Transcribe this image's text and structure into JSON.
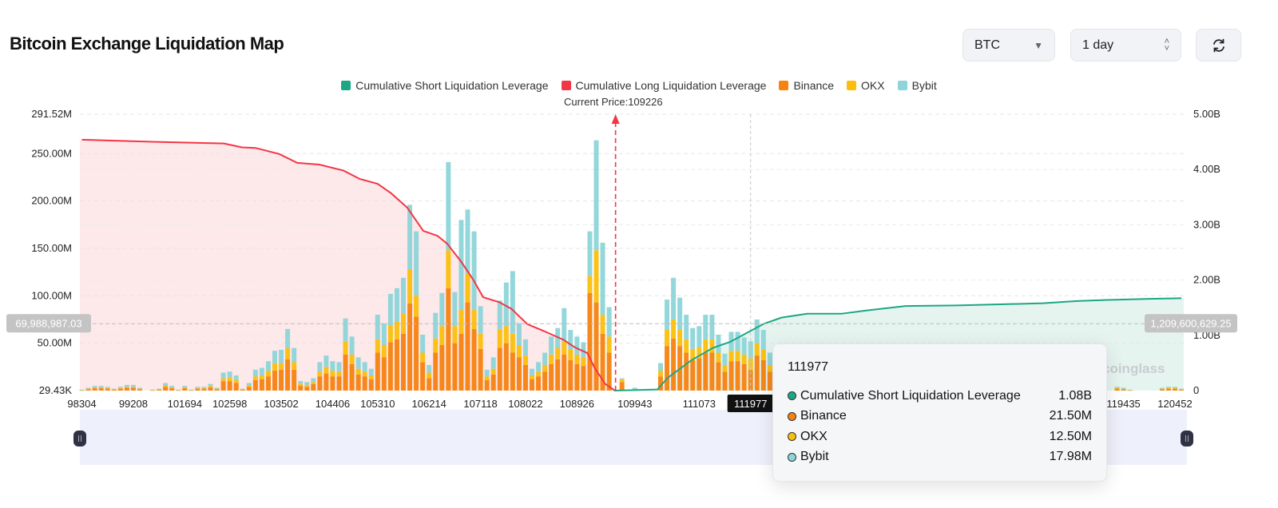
{
  "header": {
    "title": "Bitcoin Exchange Liquidation Map",
    "symbol_select": "BTC",
    "period_select": "1 day",
    "refresh_icon": "refresh-icon"
  },
  "legend": [
    {
      "label": "Cumulative Short Liquidation Leverage",
      "color": "#1ba784"
    },
    {
      "label": "Cumulative Long Liquidation Leverage",
      "color": "#f23645"
    },
    {
      "label": "Binance",
      "color": "#f7820f"
    },
    {
      "label": "OKX",
      "color": "#fbbf0b"
    },
    {
      "label": "Bybit",
      "color": "#8dd5d9"
    }
  ],
  "current_price_label": "Current Price:109226",
  "watermark": "coinglass",
  "crosshair": {
    "left_value": "69,988,987.03",
    "right_value": "1,209,600,629.25",
    "x_label": "111977"
  },
  "tooltip": {
    "title": "111977",
    "rows": [
      {
        "label": "Cumulative Short Liquidation Leverage",
        "value": "1.08B",
        "color": "#1ba784"
      },
      {
        "label": "Binance",
        "value": "21.50M",
        "color": "#f7820f"
      },
      {
        "label": "OKX",
        "value": "12.50M",
        "color": "#fbbf0b"
      },
      {
        "label": "Bybit",
        "value": "17.98M",
        "color": "#8dd5d9"
      }
    ]
  },
  "chart_data": {
    "type": "bar",
    "stacked": true,
    "grid": true,
    "legend_position": "top",
    "y_left": {
      "ticks": [
        "291.52M",
        "250.00M",
        "200.00M",
        "150.00M",
        "100.00M",
        "50.00M",
        "29.43K"
      ],
      "tick_values_M": [
        291.52,
        250,
        200,
        150,
        100,
        50,
        0
      ],
      "range_M": [
        0,
        291.52
      ]
    },
    "y_right": {
      "ticks": [
        "5.00B",
        "4.00B",
        "3.00B",
        "2.00B",
        "1.00B",
        "0"
      ],
      "tick_values_B": [
        5,
        4,
        3,
        2,
        1,
        0
      ],
      "range_B": [
        0,
        5
      ]
    },
    "x_ticks": [
      {
        "label": "98304",
        "bar": 0
      },
      {
        "label": "99208",
        "bar": 8
      },
      {
        "label": "101694",
        "bar": 16
      },
      {
        "label": "102598",
        "bar": 23
      },
      {
        "label": "103502",
        "bar": 31
      },
      {
        "label": "104406",
        "bar": 39
      },
      {
        "label": "105310",
        "bar": 46
      },
      {
        "label": "106214",
        "bar": 54
      },
      {
        "label": "107118",
        "bar": 62
      },
      {
        "label": "108022",
        "bar": 69
      },
      {
        "label": "108926",
        "bar": 77
      },
      {
        "label": "109943",
        "bar": 86
      },
      {
        "label": "111073",
        "bar": 96
      },
      {
        "label": "111977",
        "bar": 104
      },
      {
        "label": "119435",
        "bar": 162
      },
      {
        "label": "120452",
        "bar": 170
      }
    ],
    "current_price": 109226,
    "current_price_bar": 83,
    "series_names": [
      "Binance",
      "OKX",
      "Bybit"
    ],
    "bars_M": [
      [
        0.5,
        0.2,
        0.3
      ],
      [
        1.5,
        0.5,
        1
      ],
      [
        2.5,
        1,
        1.5
      ],
      [
        2.5,
        1,
        1.5
      ],
      [
        2,
        0.7,
        1.3
      ],
      [
        1,
        0.4,
        0.6
      ],
      [
        2,
        0.7,
        1.3
      ],
      [
        3,
        1,
        2
      ],
      [
        3,
        1,
        2
      ],
      [
        1.5,
        0.5,
        1
      ],
      [
        0,
        0,
        0
      ],
      [
        0.5,
        0.2,
        0.3
      ],
      [
        1,
        0.4,
        0.6
      ],
      [
        4,
        1.5,
        2.5
      ],
      [
        2.5,
        1,
        1.5
      ],
      [
        0.5,
        0.2,
        0.3
      ],
      [
        2.5,
        1,
        1.5
      ],
      [
        0.5,
        0.2,
        0.3
      ],
      [
        2,
        0.7,
        1.3
      ],
      [
        2,
        0.7,
        1.3
      ],
      [
        3.5,
        1.2,
        2.3
      ],
      [
        1.5,
        0.5,
        1
      ],
      [
        10,
        3,
        6
      ],
      [
        10,
        4,
        6
      ],
      [
        8,
        3,
        5
      ],
      [
        1,
        0.4,
        0.6
      ],
      [
        4,
        1.5,
        2.5
      ],
      [
        11,
        4,
        7
      ],
      [
        12,
        4,
        8
      ],
      [
        15,
        6,
        10
      ],
      [
        21,
        8,
        13
      ],
      [
        22,
        7,
        14
      ],
      [
        33,
        12,
        20
      ],
      [
        22,
        8,
        15
      ],
      [
        5,
        2,
        3
      ],
      [
        4,
        2,
        3
      ],
      [
        7,
        2,
        4
      ],
      [
        15,
        5,
        10
      ],
      [
        18,
        7,
        12
      ],
      [
        15,
        6,
        10
      ],
      [
        15,
        5,
        10
      ],
      [
        38,
        14,
        24
      ],
      [
        28,
        10,
        19
      ],
      [
        17,
        6,
        12
      ],
      [
        15,
        5,
        10
      ],
      [
        12,
        4,
        7
      ],
      [
        40,
        14,
        26
      ],
      [
        35,
        13,
        23
      ],
      [
        51,
        18,
        33
      ],
      [
        54,
        19,
        35
      ],
      [
        60,
        21,
        38
      ],
      [
        92,
        36,
        68
      ],
      [
        78,
        22,
        68
      ],
      [
        30,
        10,
        19
      ],
      [
        13,
        6,
        8
      ],
      [
        40,
        15,
        27
      ],
      [
        48,
        20,
        35
      ],
      [
        108,
        40,
        93
      ],
      [
        50,
        18,
        36
      ],
      [
        60,
        25,
        95
      ],
      [
        93,
        30,
        68
      ],
      [
        65,
        20,
        83
      ],
      [
        44,
        16,
        29
      ],
      [
        11,
        4,
        7
      ],
      [
        17,
        6,
        12
      ],
      [
        45,
        20,
        30
      ],
      [
        50,
        18,
        46
      ],
      [
        40,
        20,
        66
      ],
      [
        35,
        13,
        23
      ],
      [
        27,
        10,
        17
      ],
      [
        12,
        4,
        7
      ],
      [
        15,
        5,
        10
      ],
      [
        20,
        7,
        13
      ],
      [
        28,
        10,
        19
      ],
      [
        33,
        12,
        21
      ],
      [
        38,
        14,
        35
      ],
      [
        32,
        11,
        21
      ],
      [
        28,
        10,
        19
      ],
      [
        26,
        9,
        16
      ],
      [
        103,
        18,
        47
      ],
      [
        93,
        55,
        116
      ],
      [
        60,
        20,
        76
      ],
      [
        40,
        17,
        31
      ],
      [
        0,
        0,
        0
      ],
      [
        9,
        3,
        1
      ],
      [
        0,
        0,
        0
      ],
      [
        1,
        0.5,
        1.5
      ],
      [
        0,
        0,
        0
      ],
      [
        0,
        0,
        0
      ],
      [
        0,
        0,
        0
      ],
      [
        15,
        6,
        8
      ],
      [
        47,
        17,
        32
      ],
      [
        55,
        20,
        44
      ],
      [
        47,
        17,
        34
      ],
      [
        40,
        14,
        26
      ],
      [
        32,
        12,
        22
      ],
      [
        34,
        12,
        22
      ],
      [
        40,
        14,
        26
      ],
      [
        40,
        14,
        26
      ],
      [
        30,
        10,
        19
      ],
      [
        20,
        7,
        12
      ],
      [
        31,
        11,
        20
      ],
      [
        31,
        11,
        20
      ],
      [
        28,
        10,
        18
      ],
      [
        21.5,
        12.5,
        17.98
      ],
      [
        37,
        13,
        25
      ],
      [
        32,
        11,
        21
      ],
      [
        20,
        7,
        13
      ],
      null,
      null,
      null,
      null,
      null,
      null,
      null,
      null,
      null,
      null,
      null,
      null,
      null,
      null,
      null,
      null,
      null,
      null,
      null,
      null,
      null,
      null,
      null,
      null,
      null,
      null,
      null,
      null,
      null,
      null,
      null,
      null,
      null,
      null,
      null,
      null,
      null,
      null,
      null,
      null,
      null,
      null,
      null,
      null,
      null,
      null,
      null,
      null,
      null,
      null,
      null,
      null,
      null,
      [
        2,
        1,
        1
      ],
      [
        1.5,
        0.5,
        1
      ],
      [
        0.5,
        0.2,
        0.3
      ],
      [
        0,
        0,
        0
      ],
      [
        0,
        0,
        0
      ],
      [
        0,
        0,
        0
      ],
      [
        0,
        0,
        0
      ],
      [
        1.5,
        0.5,
        1
      ],
      [
        2,
        1,
        1
      ],
      [
        2,
        1,
        1
      ],
      [
        1,
        0.4,
        0.6
      ]
    ],
    "cumulative_long_B": [
      [
        0,
        4.54
      ],
      [
        11.5,
        4.5
      ],
      [
        22.1,
        4.47
      ],
      [
        24.9,
        4.4
      ],
      [
        27,
        4.39
      ],
      [
        30.7,
        4.28
      ],
      [
        33.5,
        4.12
      ],
      [
        36.9,
        4.09
      ],
      [
        40.7,
        3.98
      ],
      [
        43.2,
        3.83
      ],
      [
        46,
        3.74
      ],
      [
        48.1,
        3.57
      ],
      [
        50.6,
        3.31
      ],
      [
        53.1,
        2.89
      ],
      [
        55.3,
        2.8
      ],
      [
        56.8,
        2.66
      ],
      [
        59,
        2.33
      ],
      [
        60.9,
        2.0
      ],
      [
        62.4,
        1.69
      ],
      [
        64.9,
        1.6
      ],
      [
        66.8,
        1.48
      ],
      [
        69.3,
        1.2
      ],
      [
        71.8,
        1.08
      ],
      [
        74.9,
        0.92
      ],
      [
        76.7,
        0.78
      ],
      [
        78.6,
        0.68
      ],
      [
        79.8,
        0.4
      ],
      [
        81.4,
        0.12
      ],
      [
        82.9,
        0
      ]
    ],
    "cumulative_short_B": [
      [
        82.8,
        0
      ],
      [
        89.5,
        0.02
      ],
      [
        91.1,
        0.23
      ],
      [
        94.8,
        0.55
      ],
      [
        98.1,
        0.77
      ],
      [
        100.8,
        0.88
      ],
      [
        104,
        1.08
      ],
      [
        106.1,
        1.21
      ],
      [
        108.8,
        1.32
      ],
      [
        112.8,
        1.39
      ],
      [
        118.1,
        1.39
      ],
      [
        122.1,
        1.45
      ],
      [
        128.1,
        1.53
      ],
      [
        136.1,
        1.54
      ],
      [
        142.8,
        1.56
      ],
      [
        149.5,
        1.58
      ],
      [
        154.8,
        1.62
      ],
      [
        159.5,
        1.64
      ],
      [
        166.1,
        1.66
      ],
      [
        171,
        1.67
      ]
    ]
  }
}
